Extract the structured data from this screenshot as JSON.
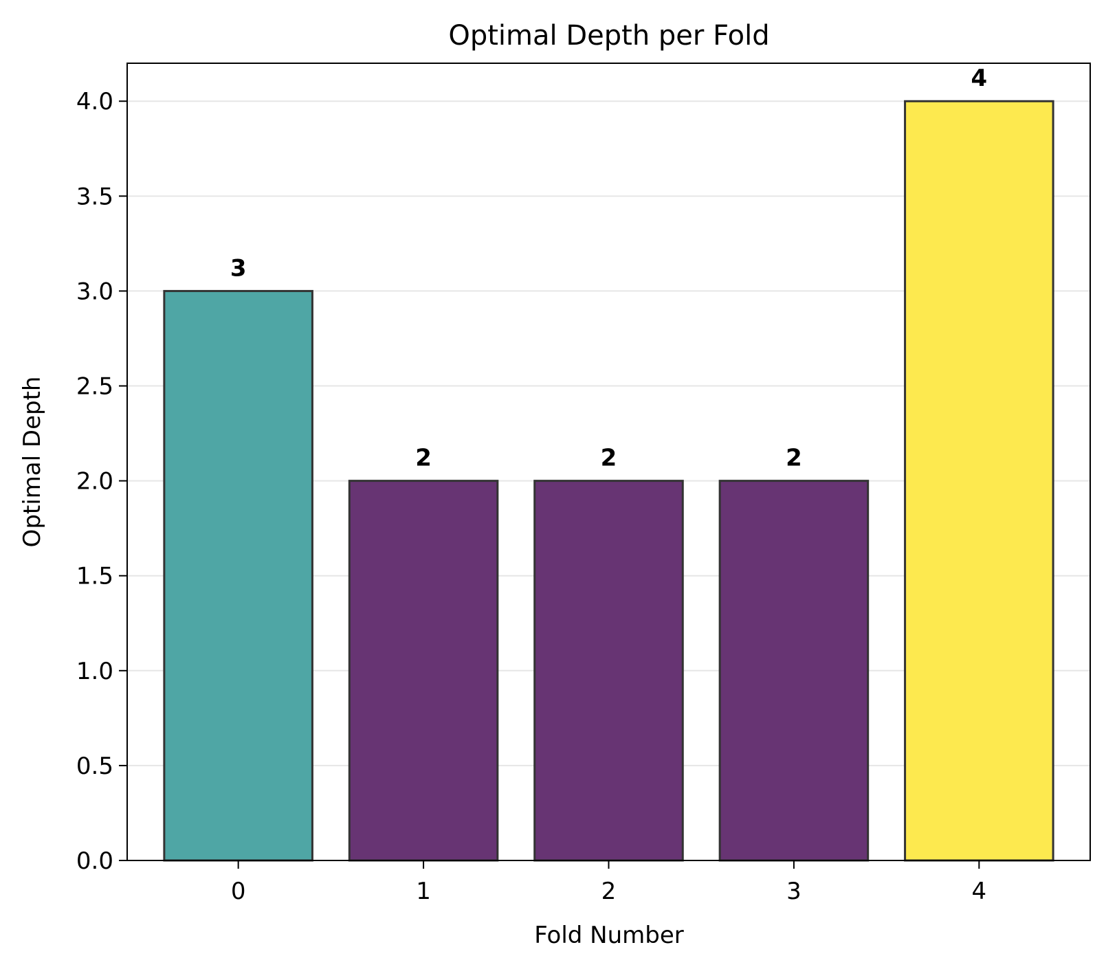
{
  "chart_data": {
    "type": "bar",
    "title": "Optimal Depth per Fold",
    "xlabel": "Fold Number",
    "ylabel": "Optimal Depth",
    "categories": [
      "0",
      "1",
      "2",
      "3",
      "4"
    ],
    "values": [
      3,
      2,
      2,
      2,
      4
    ],
    "data_labels": [
      "3",
      "2",
      "2",
      "2",
      "4"
    ],
    "ylim": [
      0,
      4.2
    ],
    "yticks": [
      0.0,
      0.5,
      1.0,
      1.5,
      2.0,
      2.5,
      3.0,
      3.5,
      4.0
    ],
    "ytick_labels": [
      "0.0",
      "0.5",
      "1.0",
      "1.5",
      "2.0",
      "2.5",
      "3.0",
      "3.5",
      "4.0"
    ],
    "grid": "horizontal",
    "legend": "none",
    "bar_colors": [
      "#4fa6a5",
      "#673473",
      "#673473",
      "#673473",
      "#fde94f"
    ],
    "bar_edge_color": "#333333",
    "grid_color": "#e6e6e6"
  }
}
